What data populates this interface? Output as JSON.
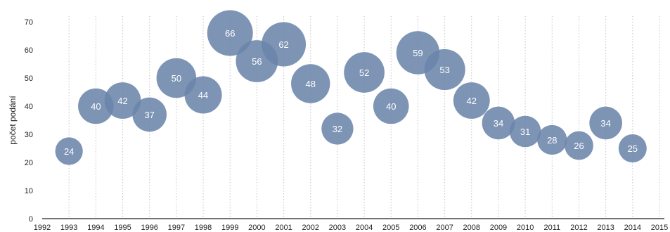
{
  "chart_data": {
    "type": "scatter",
    "title": "",
    "xlabel": "",
    "ylabel": "počet podání",
    "xlim": [
      1992,
      2015
    ],
    "ylim": [
      0,
      70
    ],
    "y_ticks": [
      0,
      10,
      20,
      30,
      40,
      50,
      60,
      70
    ],
    "x_ticks": [
      1992,
      1993,
      1994,
      1995,
      1996,
      1997,
      1998,
      1999,
      2000,
      2001,
      2002,
      2003,
      2004,
      2005,
      2006,
      2007,
      2008,
      2009,
      2010,
      2011,
      2012,
      2013,
      2014,
      2015
    ],
    "grid": "vertical-dotted",
    "bubble_color": "#6b85ab",
    "bubble_size_encodes": "value",
    "points": [
      {
        "x": 1993,
        "y": 24,
        "label": "24"
      },
      {
        "x": 1994,
        "y": 40,
        "label": "40"
      },
      {
        "x": 1995,
        "y": 42,
        "label": "42"
      },
      {
        "x": 1996,
        "y": 37,
        "label": "37"
      },
      {
        "x": 1997,
        "y": 50,
        "label": "50"
      },
      {
        "x": 1998,
        "y": 44,
        "label": "44"
      },
      {
        "x": 1999,
        "y": 66,
        "label": "66"
      },
      {
        "x": 2000,
        "y": 56,
        "label": "56"
      },
      {
        "x": 2001,
        "y": 62,
        "label": "62"
      },
      {
        "x": 2002,
        "y": 48,
        "label": "48"
      },
      {
        "x": 2003,
        "y": 32,
        "label": "32"
      },
      {
        "x": 2004,
        "y": 52,
        "label": "52"
      },
      {
        "x": 2005,
        "y": 40,
        "label": "40"
      },
      {
        "x": 2006,
        "y": 59,
        "label": "59"
      },
      {
        "x": 2007,
        "y": 53,
        "label": "53"
      },
      {
        "x": 2008,
        "y": 42,
        "label": "42"
      },
      {
        "x": 2009,
        "y": 34,
        "label": "34"
      },
      {
        "x": 2010,
        "y": 31,
        "label": "31"
      },
      {
        "x": 2011,
        "y": 28,
        "label": "28"
      },
      {
        "x": 2012,
        "y": 26,
        "label": "26"
      },
      {
        "x": 2013,
        "y": 34,
        "label": "34"
      },
      {
        "x": 2014,
        "y": 25,
        "label": "25"
      }
    ]
  }
}
